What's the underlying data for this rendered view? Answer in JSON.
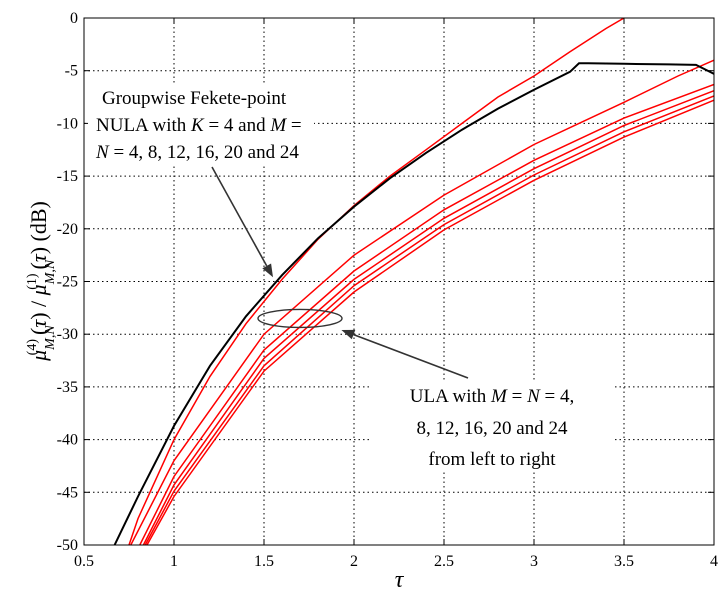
{
  "chart_data": {
    "type": "line",
    "xlabel": "τ",
    "ylabel_unit": "(dB)",
    "xlim": [
      0.5,
      4
    ],
    "ylim": [
      -50,
      0
    ],
    "xticks": [
      0.5,
      1,
      1.5,
      2,
      2.5,
      3,
      3.5,
      4
    ],
    "xtick_labels": [
      "0.5",
      "1",
      "1.5",
      "2",
      "2.5",
      "3",
      "3.5",
      "4"
    ],
    "yticks": [
      -50,
      -45,
      -40,
      -35,
      -30,
      -25,
      -20,
      -15,
      -10,
      -5,
      0
    ],
    "ytick_labels": [
      "-50",
      "-45",
      "-40",
      "-35",
      "-30",
      "-25",
      "-20",
      "-15",
      "-10",
      "-5",
      "0"
    ],
    "grid": true,
    "series_color": {
      "nula": "#000000",
      "ula": "#ff0000"
    },
    "series": [
      {
        "group": "nula",
        "x": [
          0.67,
          0.8,
          1.0,
          1.2,
          1.4,
          1.6,
          1.8,
          2.0,
          2.2,
          2.4,
          2.6,
          2.8,
          3.0,
          3.2,
          3.25,
          3.3,
          3.5,
          3.75,
          3.9,
          4.0
        ],
        "y": [
          -50,
          -45.4,
          -38.7,
          -33.0,
          -28.3,
          -24.4,
          -20.9,
          -17.9,
          -15.2,
          -12.8,
          -10.6,
          -8.6,
          -6.8,
          -5.1,
          -4.3,
          -4.3,
          -4.35,
          -4.4,
          -4.45,
          -5.3
        ]
      },
      {
        "group": "ula",
        "x": [
          0.75,
          0.8,
          1.0,
          1.2,
          1.4,
          1.6,
          1.8,
          2.0,
          2.2,
          2.4,
          2.6,
          2.8,
          3.0,
          3.2,
          3.4,
          3.5
        ],
        "y": [
          -50,
          -47.5,
          -40.0,
          -34.0,
          -29.0,
          -24.8,
          -21.0,
          -17.8,
          -15.0,
          -12.5,
          -10.0,
          -7.5,
          -5.5,
          -3.2,
          -1.0,
          0
        ]
      },
      {
        "group": "ula",
        "x": [
          0.76,
          1.0,
          1.5,
          2.0,
          2.5,
          3.0,
          3.5,
          3.8,
          4.0
        ],
        "y": [
          -50,
          -42.0,
          -30.0,
          -22.5,
          -16.8,
          -12.0,
          -8.0,
          -5.5,
          -4.0
        ]
      },
      {
        "group": "ula",
        "x": [
          0.81,
          1.0,
          1.5,
          2.0,
          2.5,
          3.0,
          3.5,
          4.0
        ],
        "y": [
          -50,
          -43.5,
          -31.5,
          -24.0,
          -18.2,
          -13.5,
          -9.5,
          -6.3
        ]
      },
      {
        "group": "ula",
        "x": [
          0.83,
          1.0,
          1.5,
          2.0,
          2.5,
          3.0,
          3.5,
          4.0
        ],
        "y": [
          -50,
          -44.3,
          -32.3,
          -24.8,
          -19.0,
          -14.3,
          -10.2,
          -6.9
        ]
      },
      {
        "group": "ula",
        "x": [
          0.84,
          1.0,
          1.5,
          2.0,
          2.5,
          3.0,
          3.5,
          4.0
        ],
        "y": [
          -50,
          -44.9,
          -33.0,
          -25.4,
          -19.6,
          -14.9,
          -10.8,
          -7.4
        ]
      },
      {
        "group": "ula",
        "x": [
          0.85,
          1.0,
          1.5,
          2.0,
          2.5,
          3.0,
          3.5,
          4.0
        ],
        "y": [
          -50,
          -45.4,
          -33.5,
          -26.0,
          -20.1,
          -15.4,
          -11.3,
          -7.8
        ]
      }
    ],
    "annotations": [
      {
        "lines": [
          "Groupwise Fekete-point",
          "NULA with K = 4 and M =",
          "N = 4, 8, 12, 16, 20 and 24"
        ],
        "arrow_to": [
          1.55,
          -24.6
        ]
      },
      {
        "lines": [
          "ULA with M = N = 4,",
          "8, 12, 16, 20 and 24",
          "from left to right"
        ],
        "ellipse_center": [
          1.7,
          -28.5
        ],
        "arrow_to": [
          1.93,
          -29.6
        ]
      }
    ]
  }
}
